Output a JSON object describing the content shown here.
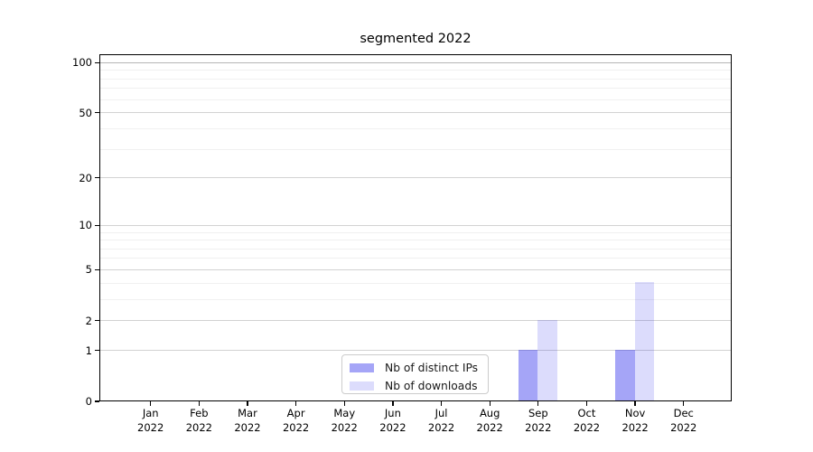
{
  "chart_data": {
    "type": "bar",
    "title": "segmented 2022",
    "categories": [
      "Jan",
      "Feb",
      "Mar",
      "Apr",
      "May",
      "Jun",
      "Jul",
      "Aug",
      "Sep",
      "Oct",
      "Nov",
      "Dec"
    ],
    "x_year_label": "2022",
    "series": [
      {
        "name": "Nb of distinct IPs",
        "color": "rgba(40,40,235,0.42)",
        "values": [
          0,
          0,
          0,
          0,
          0,
          0,
          0,
          0,
          1,
          0,
          1,
          0
        ]
      },
      {
        "name": "Nb of downloads",
        "color": "rgba(40,40,235,0.16)",
        "values": [
          0,
          0,
          0,
          0,
          0,
          0,
          0,
          0,
          2,
          0,
          4,
          0
        ]
      }
    ],
    "y_axis": {
      "scale": "log1p",
      "major_ticks": [
        0,
        1,
        2,
        5,
        10,
        20,
        50,
        100
      ],
      "minor_gridlines": [
        3,
        4,
        6,
        7,
        8,
        9,
        30,
        40,
        60,
        70,
        80,
        90
      ],
      "range_top": 112
    },
    "legend": {
      "position": "lower center"
    },
    "grid": "horizontal",
    "colors": {
      "major_grid": "#d2d2d2",
      "minor_grid": "#f0f0f0",
      "top_grid": "#b5b5b5",
      "spine": "#000000"
    }
  }
}
